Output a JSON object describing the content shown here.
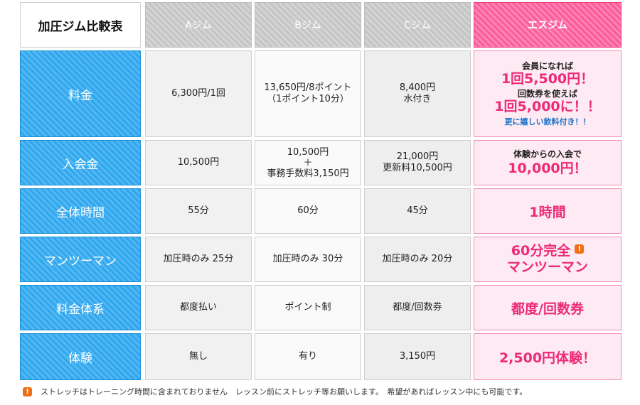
{
  "corner": "加圧ジム比較表",
  "columns": [
    "Aジム",
    "Bジム",
    "Cジム",
    "エスジム"
  ],
  "rows": [
    {
      "label": "料金",
      "a": [
        "6,300円/1回"
      ],
      "b": [
        "13,650円/8ポイント",
        "（1ポイント10分）"
      ],
      "c": [
        "8,400円",
        "水付き"
      ],
      "e": {
        "l1": "会員になれば",
        "l2": "1回5,500円！",
        "l3": "回数券を使えば",
        "l4": "1回5,000に！！",
        "l5": "更に嬉しい飲料付き！！"
      }
    },
    {
      "label": "入会金",
      "a": [
        "10,500円"
      ],
      "b": [
        "10,500円",
        "＋",
        "事務手数料3,150円"
      ],
      "c": [
        "21,000円",
        "更新料10,500円"
      ],
      "e": {
        "l1": "体験からの入会で",
        "l2": "10,000円！"
      }
    },
    {
      "label": "全体時間",
      "a": [
        "55分"
      ],
      "b": [
        "60分"
      ],
      "c": [
        "45分"
      ],
      "e": {
        "l1": "1時間"
      }
    },
    {
      "label": "マンツーマン",
      "a": [
        "加圧時のみ 25分"
      ],
      "b": [
        "加圧時のみ 30分"
      ],
      "c": [
        "加圧時のみ 20分"
      ],
      "e": {
        "l1": "60分完全",
        "l2": "マンツーマン",
        "icon": "exclamation-icon"
      }
    },
    {
      "label": "料金体系",
      "a": [
        "都度払い"
      ],
      "b": [
        "ポイント制"
      ],
      "c": [
        "都度/回数券"
      ],
      "e": {
        "l1": "都度/回数券"
      }
    },
    {
      "label": "体験",
      "a": [
        "無し"
      ],
      "b": [
        "有り"
      ],
      "c": [
        "3,150円"
      ],
      "e": {
        "l1": "2,500円体験！"
      }
    }
  ],
  "footnote": {
    "icon": "exclamation-icon",
    "text": "ストレッチはトレーニング時間に含まれておりません　レッスン前にストレッチ等お願いします。　希望があればレッスン中にも可能です。"
  },
  "colors": {
    "header_gray": "#c4c4c4",
    "header_pink": "#fb5c99",
    "row_blue": "#2ea7ee",
    "pink_text": "#ee2a76",
    "blue_text": "#1e73c8",
    "warn_orange": "#f36f16"
  }
}
